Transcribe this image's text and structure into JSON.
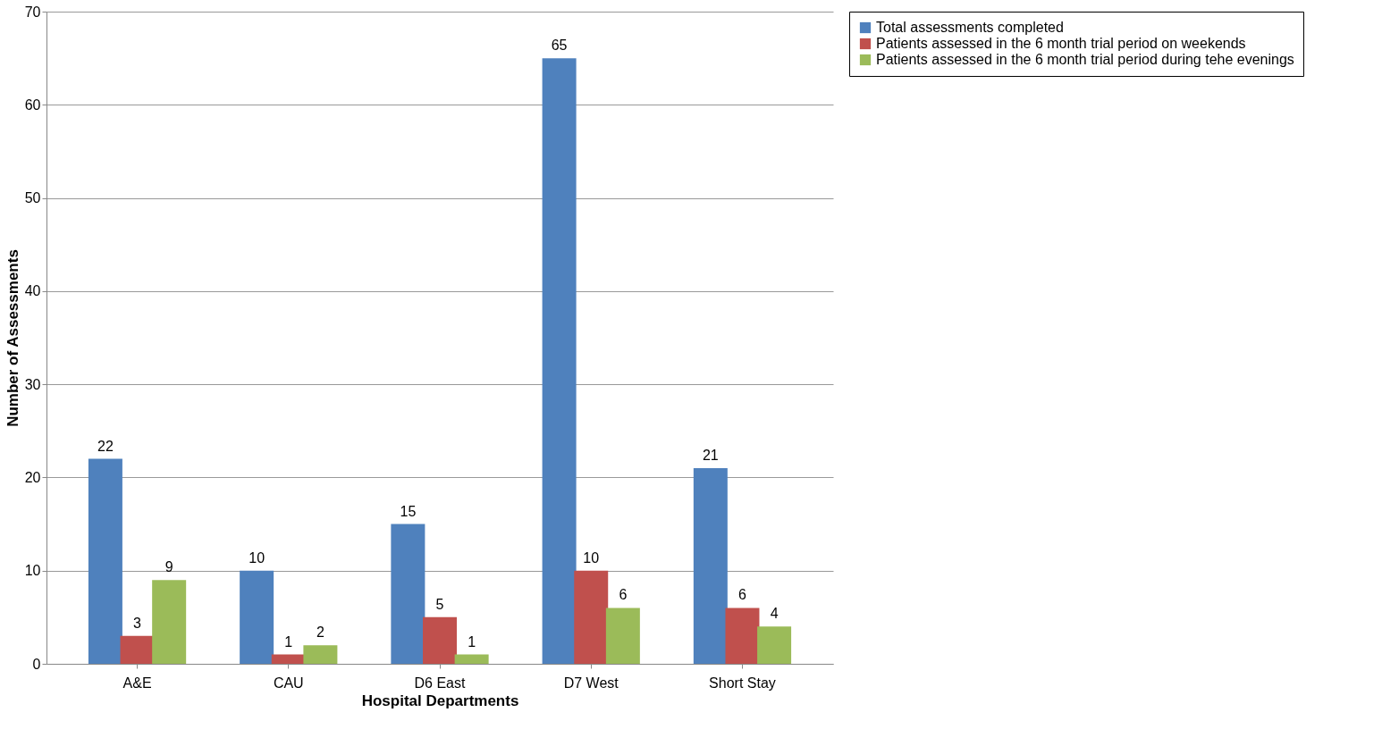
{
  "chart_data": {
    "type": "bar",
    "xlabel": "Hospital Departments",
    "ylabel": "Number of Assessments",
    "categories": [
      "A&E",
      "CAU",
      "D6 East",
      "D7 West",
      "Short Stay"
    ],
    "series": [
      {
        "name": "Total assessments completed",
        "color": "#4f81bd",
        "values": [
          22,
          10,
          15,
          65,
          21
        ]
      },
      {
        "name": "Patients assessed in the 6 month trial period on weekends",
        "color": "#c0504d",
        "values": [
          3,
          1,
          5,
          10,
          6
        ]
      },
      {
        "name": "Patients assessed in the 6 month trial period during tehe evenings",
        "color": "#9bbb59",
        "values": [
          9,
          2,
          1,
          6,
          4
        ]
      }
    ],
    "ylim": [
      0,
      70
    ],
    "yticks": [
      0,
      10,
      20,
      30,
      40,
      50,
      60,
      70
    ],
    "grid": "y",
    "legend": "right",
    "data_labels": true
  }
}
